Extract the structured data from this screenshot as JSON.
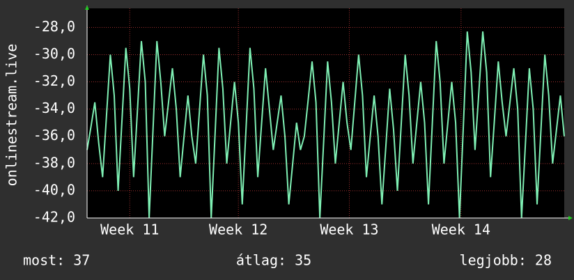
{
  "chart_data": {
    "type": "line",
    "ylabel": "onlinestream.live",
    "x": [
      0,
      0.25,
      0.5,
      0.75,
      1,
      1.25,
      1.5,
      1.75,
      2,
      2.25,
      2.5,
      2.75,
      3,
      3.25,
      3.5,
      3.75,
      4,
      4.25,
      4.5,
      4.75,
      5,
      5.25,
      5.5,
      5.75,
      6,
      6.25,
      6.5,
      6.75,
      7,
      7.25,
      7.5,
      7.75,
      8,
      8.25,
      8.5,
      8.75,
      9,
      9.25,
      9.5,
      9.75,
      10,
      10.25,
      10.5,
      10.75,
      11,
      11.25,
      11.5,
      11.75,
      12,
      12.25,
      12.5,
      12.75,
      13,
      13.25,
      13.5,
      13.75,
      14,
      14.25,
      14.5,
      14.75,
      15,
      15.25,
      15.5,
      15.75,
      16,
      16.25,
      16.5,
      16.75,
      17,
      17.25,
      17.5,
      17.75,
      18,
      18.25,
      18.5,
      18.75,
      19,
      19.25,
      19.5,
      19.75,
      20,
      20.25,
      20.5,
      20.75,
      21,
      21.25,
      21.5,
      21.75,
      22,
      22.25,
      22.5,
      22.75,
      23,
      23.25,
      23.5,
      23.75,
      24,
      24.25,
      24.5,
      24.75,
      25,
      25.25,
      25.5,
      25.75,
      26,
      26.25,
      26.5,
      26.75,
      27,
      27.25,
      27.5,
      27.75,
      28,
      28.25,
      28.5,
      28.75,
      29,
      29.25,
      29.5,
      29.75,
      30,
      30.25,
      30.5,
      30.75
    ],
    "values": [
      -37,
      -35.3,
      -33.5,
      -36.5,
      -39,
      -34.5,
      -30,
      -33,
      -40,
      -34.8,
      -29.5,
      -32.5,
      -39,
      -34,
      -29,
      -32,
      -42,
      -35.5,
      -29,
      -32,
      -36,
      -33.5,
      -31,
      -34,
      -39,
      -36,
      -33,
      -36,
      -38,
      -34,
      -30,
      -33,
      -42,
      -35.8,
      -29.5,
      -32.5,
      -38,
      -35,
      -32,
      -35,
      -41,
      -35.3,
      -29.5,
      -32.5,
      -39,
      -35,
      -31,
      -34,
      -37,
      -35,
      -33,
      -36,
      -41,
      -38,
      -35,
      -37,
      -36,
      -33.3,
      -30.5,
      -33.5,
      -42,
      -36.3,
      -30.5,
      -33.5,
      -38,
      -35,
      -32,
      -35,
      -37,
      -33.5,
      -30,
      -33,
      -39,
      -36,
      -33,
      -36,
      -41,
      -36.8,
      -32.5,
      -35.5,
      -40,
      -35,
      -30,
      -33,
      -38,
      -35,
      -32,
      -35,
      -41,
      -35,
      -29,
      -32,
      -38,
      -35,
      -32,
      -35,
      -42,
      -35.2,
      -28.3,
      -31.3,
      -37,
      -32.7,
      -28.3,
      -31.3,
      -39,
      -34.8,
      -30.5,
      -33.5,
      -36,
      -33.5,
      -31,
      -34,
      -42,
      -36.5,
      -31,
      -34,
      -41,
      -35.5,
      -30,
      -33,
      -38,
      -35.5,
      -33,
      -36
    ],
    "color": "#7ff0b4",
    "xlim": [
      0,
      30.75
    ],
    "xticks": [
      {
        "value": 2.75,
        "label": "Week 11"
      },
      {
        "value": 9.75,
        "label": "Week 12"
      },
      {
        "value": 16.9,
        "label": "Week 13"
      },
      {
        "value": 24.1,
        "label": "Week 14"
      }
    ],
    "ylim": [
      -42,
      -26.6
    ],
    "yticks": [
      {
        "value": -42,
        "label": "-42,0"
      },
      {
        "value": -40,
        "label": "-40,0"
      },
      {
        "value": -38,
        "label": "-38,0"
      },
      {
        "value": -36,
        "label": "-36,0"
      },
      {
        "value": -34,
        "label": "-34,0"
      },
      {
        "value": -32,
        "label": "-32,0"
      },
      {
        "value": -30,
        "label": "-30,0"
      },
      {
        "value": -28,
        "label": "-28,0"
      }
    ],
    "grid": true,
    "footer": [
      "most: 37",
      "átlag: 35",
      "legjobb: 28"
    ]
  }
}
